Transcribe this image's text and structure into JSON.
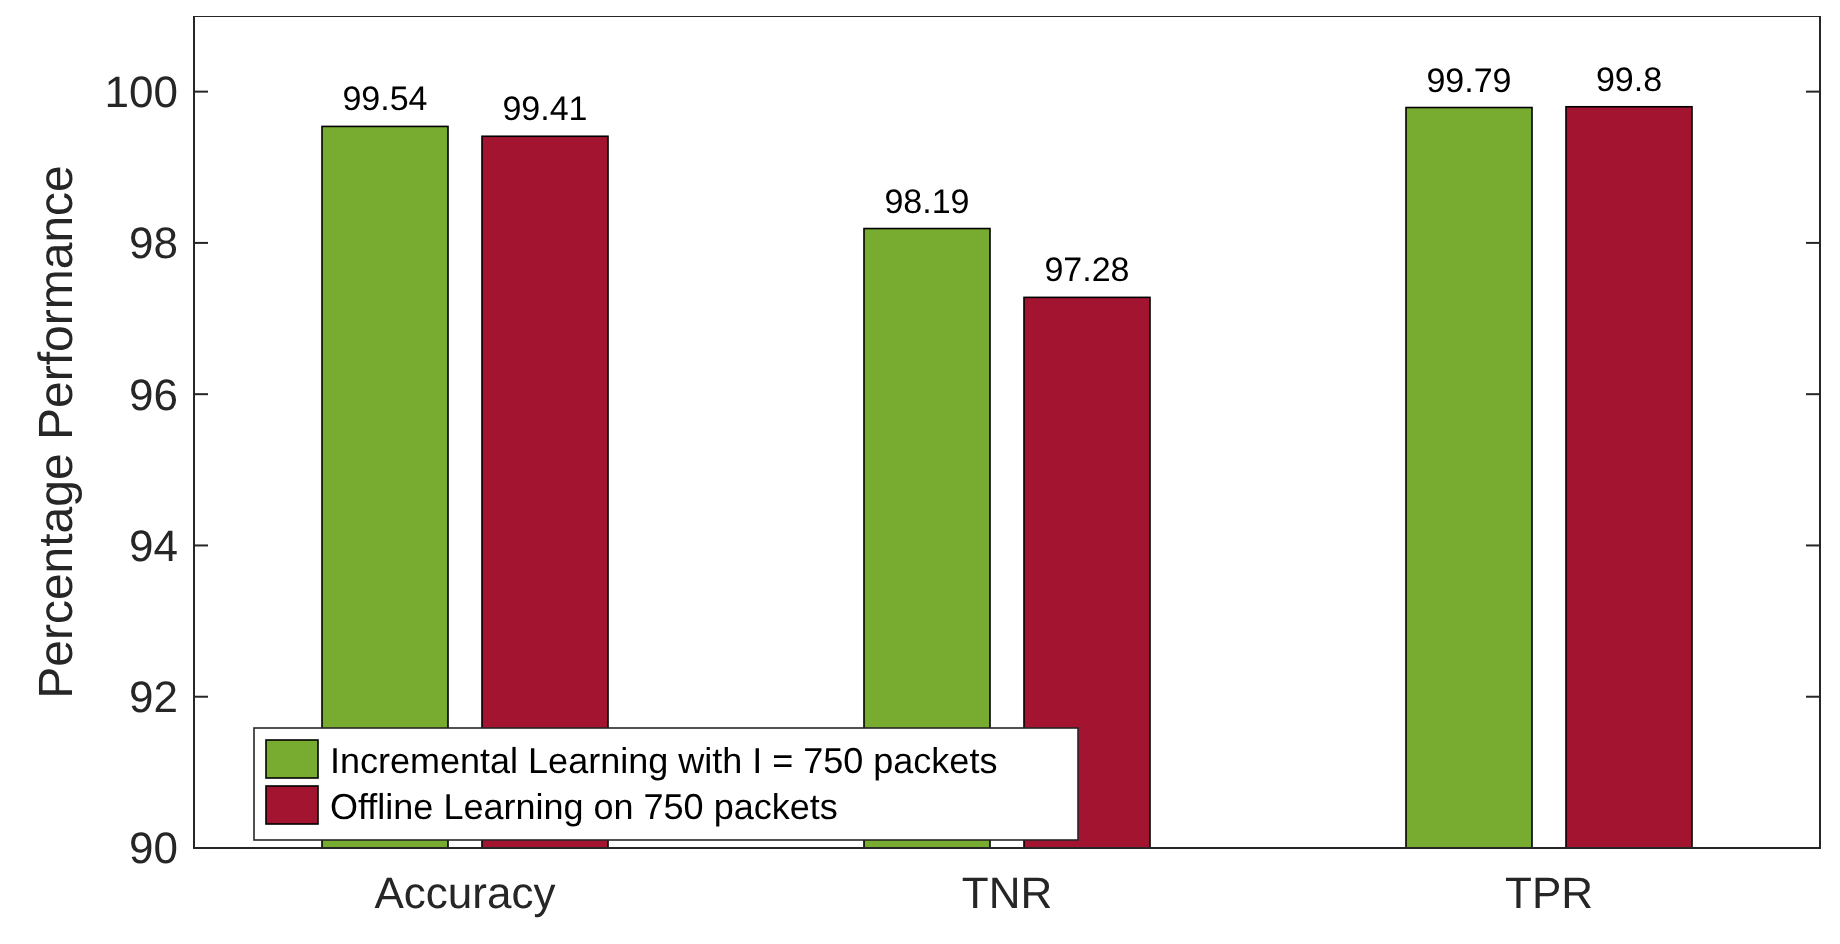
{
  "chart_data": {
    "type": "bar",
    "ylabel": "Percentage Performance",
    "categories": [
      "Accuracy",
      "TNR",
      "TPR"
    ],
    "series": [
      {
        "name": "Incremental Learning with I = 750 packets",
        "color": "#77ac30",
        "values": [
          99.54,
          98.19,
          99.79
        ]
      },
      {
        "name": "Offline Learning on 750 packets",
        "color": "#a2142f",
        "values": [
          99.41,
          97.28,
          99.8
        ]
      }
    ],
    "ylim": [
      90,
      101
    ],
    "yticks": [
      90,
      92,
      94,
      96,
      98,
      100
    ],
    "data_labels": true,
    "legend": "bottom left",
    "grid": false
  }
}
